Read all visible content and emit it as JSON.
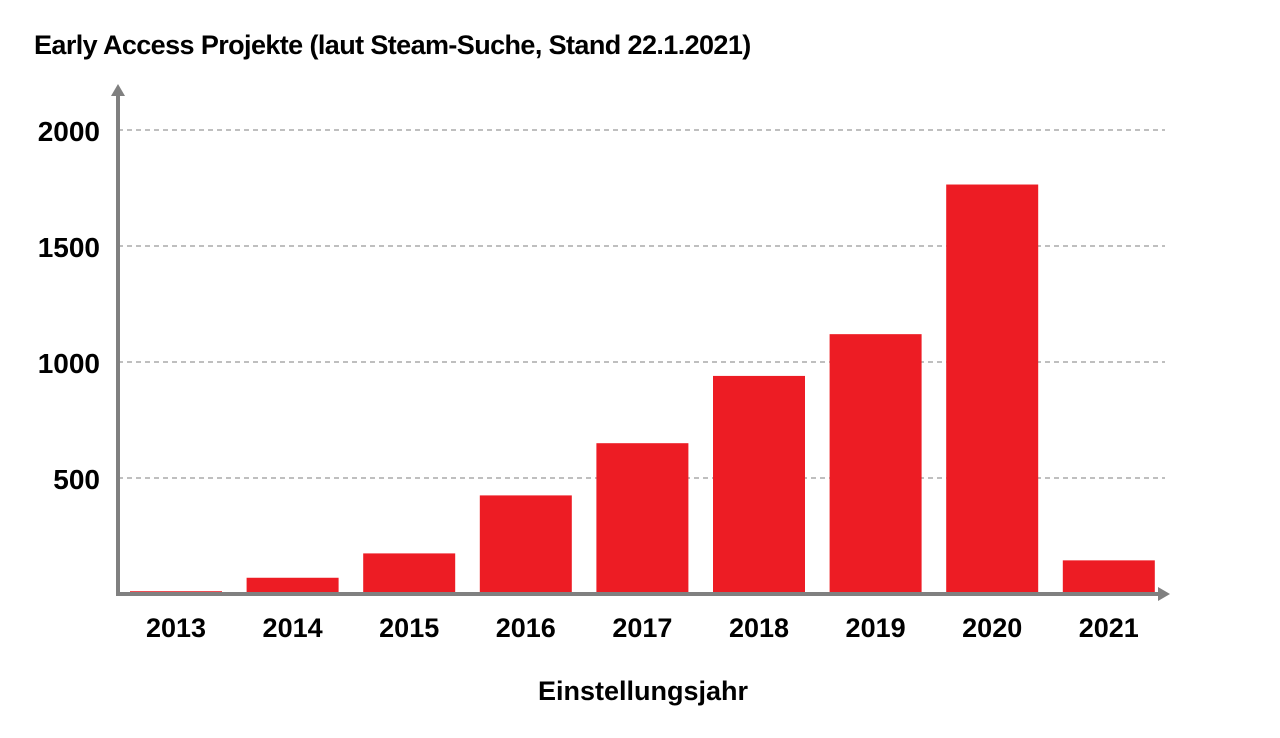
{
  "chart_data": {
    "type": "bar",
    "title": "Early Access Projekte  (laut Steam-Suche, Stand 22.1.2021)",
    "xlabel": "Einstellungsjahr",
    "ylabel": "",
    "categories": [
      "2013",
      "2014",
      "2015",
      "2016",
      "2017",
      "2018",
      "2019",
      "2020",
      "2021"
    ],
    "values": [
      12,
      70,
      175,
      425,
      650,
      940,
      1120,
      1765,
      145
    ],
    "ylim": [
      0,
      2000
    ],
    "yticks": [
      500,
      1000,
      1500,
      2000
    ],
    "grid": true,
    "legend": "none",
    "colors": {
      "bar": "#ed1c24",
      "axis": "#808080",
      "grid": "#999999"
    }
  }
}
